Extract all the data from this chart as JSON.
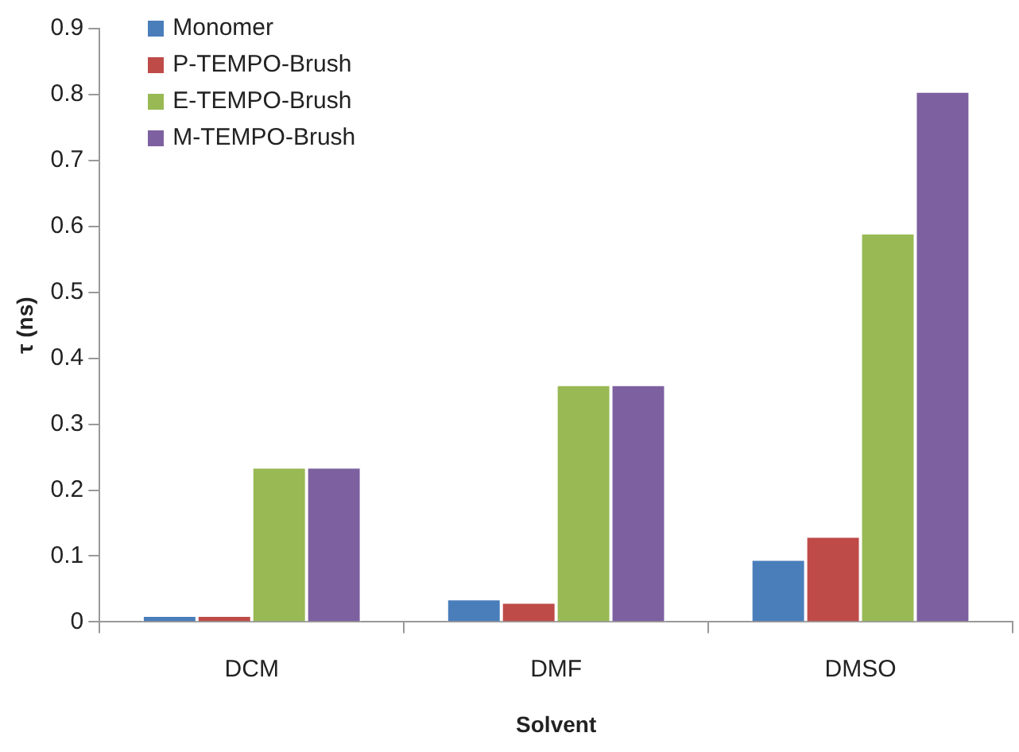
{
  "chart_data": {
    "type": "bar",
    "xlabel": "Solvent",
    "ylabel": "τ (ns)",
    "categories": [
      "DCM",
      "DMF",
      "DMSO"
    ],
    "series": [
      {
        "name": "Monomer",
        "color": "#4a7ebb",
        "values": [
          0.01,
          0.035,
          0.095
        ]
      },
      {
        "name": "P-TEMPO-Brush",
        "color": "#be4b48",
        "values": [
          0.01,
          0.03,
          0.13
        ]
      },
      {
        "name": "E-TEMPO-Brush",
        "color": "#98b954",
        "values": [
          0.235,
          0.36,
          0.59
        ]
      },
      {
        "name": "M-TEMPO-Brush",
        "color": "#7d60a0",
        "values": [
          0.235,
          0.36,
          0.805
        ]
      }
    ],
    "ylim": [
      0,
      0.9
    ],
    "yticks": [
      0,
      0.1,
      0.2,
      0.3,
      0.4,
      0.5,
      0.6,
      0.7,
      0.8,
      0.9
    ],
    "grid": false,
    "legend": "top left"
  }
}
